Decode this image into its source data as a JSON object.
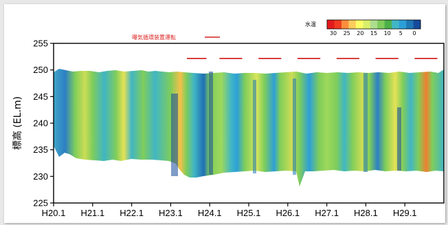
{
  "chart_data": {
    "type": "heatmap",
    "title": "",
    "xlabel": "",
    "ylabel": "標高 (EL.m)",
    "ylim": [
      225,
      255
    ],
    "yticks": [
      225,
      230,
      235,
      240,
      245,
      250,
      255
    ],
    "xticks": [
      "H20.1",
      "H21.1",
      "H22.1",
      "H23.1",
      "H24.1",
      "H25.1",
      "H26.1",
      "H27.1",
      "H28.1",
      "H29.1"
    ],
    "colorbar": {
      "label": "水温",
      "ticks": [
        "30",
        "25",
        "20",
        "15",
        "10",
        "5",
        "0"
      ],
      "colors": [
        "#e31a1c",
        "#f03b20",
        "#fd8d3c",
        "#fecc5c",
        "#ffff66",
        "#d9ef6b",
        "#addd8e",
        "#7fcd5b",
        "#4cb04a",
        "#41b6c4",
        "#2c9fd8",
        "#1f78b4",
        "#174a9c"
      ]
    },
    "aerator_label": "曝気循環装置運転",
    "aerator_periods": [
      [
        "H23.6",
        "H23.12"
      ],
      [
        "H24.4",
        "H24.11"
      ],
      [
        "H25.4",
        "H25.11"
      ],
      [
        "H26.4",
        "H26.11"
      ],
      [
        "H27.4",
        "H27.11"
      ],
      [
        "H28.4",
        "H28.11"
      ],
      [
        "H29.4",
        "H29.11"
      ]
    ],
    "colors": {
      "aerator": "#d22222",
      "axis": "#000000"
    }
  }
}
